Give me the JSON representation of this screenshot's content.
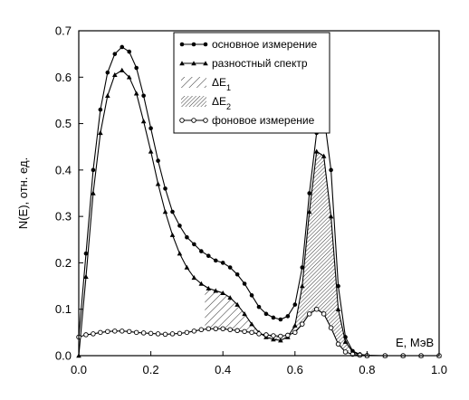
{
  "chart_data": {
    "type": "line",
    "xlabel": "E, МэВ",
    "ylabel": "N(E), отн. ед.",
    "xlim": [
      0.0,
      1.0
    ],
    "ylim": [
      0.0,
      0.7
    ],
    "xticks": [
      "0.0",
      "0.2",
      "0.4",
      "0.6",
      "0.8",
      "1.0"
    ],
    "yticks": [
      "0.0",
      "0.1",
      "0.2",
      "0.3",
      "0.4",
      "0.5",
      "0.6",
      "0.7"
    ],
    "grid": false,
    "legend_position": "top-right",
    "series": [
      {
        "name": "основное измерение",
        "marker": "filled-circle",
        "x": [
          0.0,
          0.02,
          0.04,
          0.06,
          0.08,
          0.1,
          0.12,
          0.14,
          0.16,
          0.18,
          0.2,
          0.22,
          0.24,
          0.26,
          0.28,
          0.3,
          0.32,
          0.34,
          0.36,
          0.38,
          0.4,
          0.42,
          0.44,
          0.46,
          0.48,
          0.5,
          0.52,
          0.54,
          0.56,
          0.58,
          0.6,
          0.62,
          0.64,
          0.66,
          0.68,
          0.7,
          0.72,
          0.74,
          0.76,
          0.78,
          0.8,
          0.85,
          0.9,
          0.95,
          1.0
        ],
        "y": [
          0.04,
          0.22,
          0.4,
          0.53,
          0.61,
          0.65,
          0.665,
          0.655,
          0.62,
          0.56,
          0.49,
          0.42,
          0.36,
          0.31,
          0.28,
          0.255,
          0.24,
          0.225,
          0.215,
          0.205,
          0.2,
          0.19,
          0.175,
          0.155,
          0.13,
          0.105,
          0.09,
          0.082,
          0.078,
          0.085,
          0.11,
          0.19,
          0.35,
          0.48,
          0.52,
          0.4,
          0.15,
          0.04,
          0.01,
          0.003,
          0.001,
          0.0,
          0.0,
          0.0,
          0.0
        ]
      },
      {
        "name": "разностный спектр",
        "marker": "filled-triangle",
        "x": [
          0.0,
          0.02,
          0.04,
          0.06,
          0.08,
          0.1,
          0.12,
          0.14,
          0.16,
          0.18,
          0.2,
          0.22,
          0.24,
          0.26,
          0.28,
          0.3,
          0.32,
          0.34,
          0.36,
          0.38,
          0.4,
          0.42,
          0.44,
          0.46,
          0.48,
          0.5,
          0.52,
          0.54,
          0.56,
          0.58,
          0.6,
          0.62,
          0.64,
          0.66,
          0.68,
          0.7,
          0.72,
          0.74,
          0.76,
          0.78,
          0.8,
          0.85,
          0.9,
          0.95,
          1.0
        ],
        "y": [
          0.0,
          0.17,
          0.35,
          0.48,
          0.56,
          0.605,
          0.615,
          0.6,
          0.565,
          0.505,
          0.44,
          0.37,
          0.31,
          0.26,
          0.22,
          0.19,
          0.168,
          0.155,
          0.145,
          0.14,
          0.135,
          0.125,
          0.11,
          0.09,
          0.068,
          0.05,
          0.04,
          0.035,
          0.033,
          0.04,
          0.065,
          0.15,
          0.31,
          0.44,
          0.43,
          0.3,
          0.1,
          0.03,
          0.008,
          0.002,
          0.0,
          0.0,
          0.0,
          0.0,
          0.0
        ]
      },
      {
        "name": "фоновое измерение",
        "marker": "open-circle",
        "x": [
          0.0,
          0.02,
          0.04,
          0.06,
          0.08,
          0.1,
          0.12,
          0.14,
          0.16,
          0.18,
          0.2,
          0.22,
          0.24,
          0.26,
          0.28,
          0.3,
          0.32,
          0.34,
          0.36,
          0.38,
          0.4,
          0.42,
          0.44,
          0.46,
          0.48,
          0.5,
          0.52,
          0.54,
          0.56,
          0.58,
          0.6,
          0.62,
          0.64,
          0.66,
          0.68,
          0.7,
          0.72,
          0.74,
          0.76,
          0.78,
          0.8,
          0.85,
          0.9,
          0.95,
          1.0
        ],
        "y": [
          0.04,
          0.045,
          0.047,
          0.05,
          0.052,
          0.053,
          0.053,
          0.052,
          0.05,
          0.049,
          0.048,
          0.047,
          0.046,
          0.047,
          0.048,
          0.05,
          0.053,
          0.056,
          0.058,
          0.058,
          0.058,
          0.056,
          0.054,
          0.052,
          0.05,
          0.047,
          0.045,
          0.043,
          0.042,
          0.044,
          0.05,
          0.068,
          0.09,
          0.1,
          0.09,
          0.06,
          0.025,
          0.008,
          0.003,
          0.001,
          0.0,
          0.0,
          0.0,
          0.0,
          0.0
        ]
      }
    ],
    "shaded_regions": [
      {
        "name": "ΔE₁",
        "x_range": [
          0.35,
          0.56
        ],
        "between": [
          "разностный спектр",
          "фоновое измерение"
        ],
        "pattern": "hatch-45"
      },
      {
        "name": "ΔE₂",
        "x_range": [
          0.56,
          0.75
        ],
        "between": [
          "разностный спектр",
          "фоновое измерение"
        ],
        "pattern": "hatch-dense"
      }
    ],
    "legend": [
      {
        "label": "основное измерение",
        "symbol": "line-filled-circle"
      },
      {
        "label": "разностный спектр",
        "symbol": "line-filled-triangle"
      },
      {
        "label": "ΔE",
        "sub": "1",
        "symbol": "hatch-45"
      },
      {
        "label": "ΔE",
        "sub": "2",
        "symbol": "hatch-dense"
      },
      {
        "label": "фоновое измерение",
        "symbol": "line-open-circle"
      }
    ]
  }
}
